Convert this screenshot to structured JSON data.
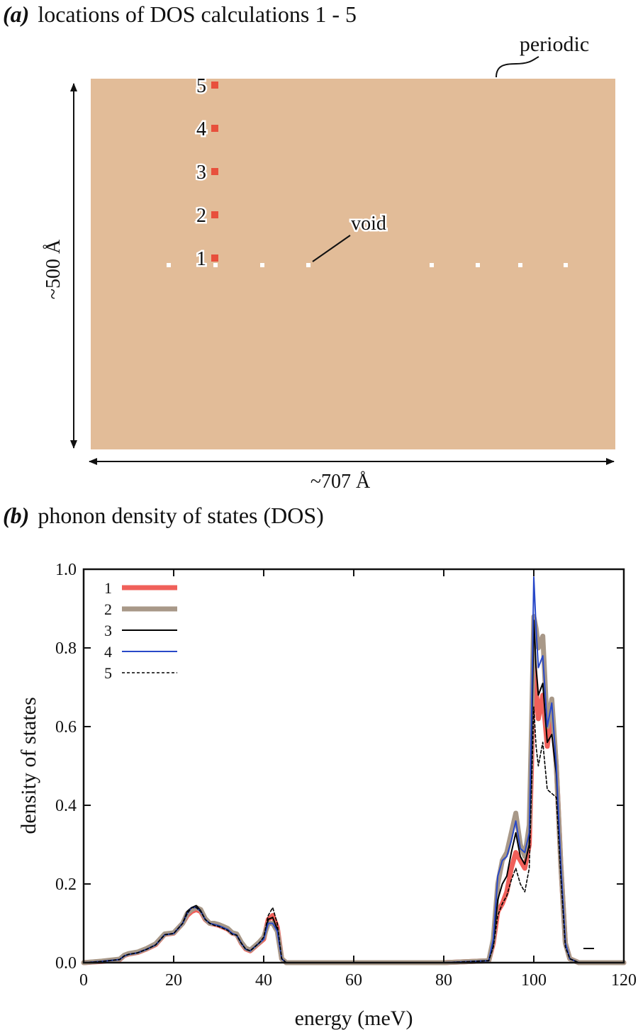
{
  "panel_a": {
    "tag": "(a)",
    "title": "locations of DOS calculations 1 - 5",
    "periodic_label": "periodic",
    "void_label": "void",
    "height_label": "~500 Å",
    "width_label": "~707 Å",
    "colors": {
      "sample": "#e2bc98",
      "marker": "#e8503c",
      "void": "#ffffff"
    },
    "locations": [
      {
        "id": "1",
        "row": 1
      },
      {
        "id": "2",
        "row": 2
      },
      {
        "id": "3",
        "row": 3
      },
      {
        "id": "4",
        "row": 4
      },
      {
        "id": "5",
        "row": 5
      }
    ]
  },
  "panel_b": {
    "tag": "(b)",
    "title": "phonon density of states (DOS)"
  },
  "chart_data": {
    "type": "line",
    "title": "phonon density of states (DOS)",
    "xlabel": "energy (meV)",
    "ylabel": "density of states",
    "xlim": [
      0,
      120
    ],
    "ylim": [
      0,
      1.0
    ],
    "xticks": [
      0,
      20,
      40,
      60,
      80,
      100,
      120
    ],
    "yticks": [
      0.0,
      0.2,
      0.4,
      0.6,
      0.8,
      1.0
    ],
    "xtick_labels": [
      "0",
      "20",
      "40",
      "60",
      "80",
      "100",
      "120"
    ],
    "ytick_labels": [
      "0.0",
      "0.2",
      "0.4",
      "0.6",
      "0.8",
      "1.0"
    ],
    "legend_position": "top-left",
    "x": [
      0,
      4,
      8,
      9,
      10,
      12,
      14,
      16,
      18,
      20,
      22,
      23,
      24,
      25,
      26,
      27,
      28,
      29,
      30,
      31,
      32,
      33,
      34,
      35,
      36,
      37,
      38,
      39,
      40,
      41,
      42,
      43,
      44,
      45,
      50,
      60,
      70,
      80,
      90,
      91,
      92,
      93,
      94,
      95,
      96,
      97,
      98,
      99,
      99.5,
      100,
      100.5,
      101,
      102,
      103,
      104,
      105,
      106,
      107,
      108,
      110,
      115,
      120
    ],
    "series": [
      {
        "name": "1",
        "color": "#f0605a",
        "width": 7,
        "dash": "",
        "values": [
          0,
          0.003,
          0.008,
          0.018,
          0.022,
          0.026,
          0.035,
          0.046,
          0.072,
          0.075,
          0.1,
          0.12,
          0.13,
          0.135,
          0.13,
          0.11,
          0.1,
          0.098,
          0.095,
          0.09,
          0.085,
          0.075,
          0.072,
          0.05,
          0.035,
          0.03,
          0.04,
          0.05,
          0.06,
          0.11,
          0.12,
          0.09,
          0.01,
          0,
          0,
          0,
          0,
          0,
          0.005,
          0.05,
          0.13,
          0.15,
          0.18,
          0.24,
          0.28,
          0.26,
          0.24,
          0.3,
          0.5,
          0.77,
          0.7,
          0.62,
          0.68,
          0.55,
          0.65,
          0.5,
          0.25,
          0.05,
          0.01,
          0,
          0,
          0
        ]
      },
      {
        "name": "2",
        "color": "#a89888",
        "width": 7,
        "dash": "",
        "values": [
          0,
          0.004,
          0.009,
          0.019,
          0.023,
          0.027,
          0.036,
          0.048,
          0.073,
          0.076,
          0.1,
          0.125,
          0.135,
          0.14,
          0.135,
          0.112,
          0.1,
          0.1,
          0.097,
          0.092,
          0.087,
          0.076,
          0.073,
          0.052,
          0.037,
          0.032,
          0.042,
          0.052,
          0.065,
          0.1,
          0.1,
          0.08,
          0.01,
          0,
          0,
          0,
          0,
          0,
          0.005,
          0.06,
          0.2,
          0.26,
          0.28,
          0.33,
          0.38,
          0.3,
          0.27,
          0.35,
          0.6,
          0.88,
          0.85,
          0.8,
          0.83,
          0.6,
          0.67,
          0.5,
          0.25,
          0.05,
          0.01,
          0,
          0,
          0
        ]
      },
      {
        "name": "3",
        "color": "#000000",
        "width": 2,
        "dash": "",
        "values": [
          0,
          0.003,
          0.008,
          0.017,
          0.021,
          0.025,
          0.034,
          0.045,
          0.071,
          0.074,
          0.1,
          0.13,
          0.14,
          0.145,
          0.132,
          0.11,
          0.1,
          0.097,
          0.094,
          0.089,
          0.084,
          0.074,
          0.07,
          0.05,
          0.034,
          0.03,
          0.04,
          0.05,
          0.06,
          0.11,
          0.115,
          0.085,
          0.01,
          0,
          0,
          0,
          0,
          0,
          0.005,
          0.05,
          0.16,
          0.2,
          0.22,
          0.28,
          0.33,
          0.27,
          0.25,
          0.3,
          0.55,
          0.87,
          0.75,
          0.68,
          0.71,
          0.56,
          0.58,
          0.48,
          0.24,
          0.05,
          0.01,
          0,
          0,
          0
        ]
      },
      {
        "name": "4",
        "color": "#2848c8",
        "width": 2,
        "dash": "",
        "values": [
          0,
          0.003,
          0.008,
          0.017,
          0.021,
          0.025,
          0.034,
          0.045,
          0.071,
          0.074,
          0.1,
          0.125,
          0.14,
          0.14,
          0.13,
          0.11,
          0.1,
          0.097,
          0.094,
          0.089,
          0.084,
          0.074,
          0.07,
          0.05,
          0.034,
          0.03,
          0.04,
          0.05,
          0.06,
          0.1,
          0.1,
          0.08,
          0.01,
          0,
          0,
          0,
          0,
          0,
          0.005,
          0.06,
          0.22,
          0.26,
          0.27,
          0.31,
          0.36,
          0.29,
          0.28,
          0.33,
          0.62,
          0.98,
          0.85,
          0.75,
          0.78,
          0.6,
          0.66,
          0.5,
          0.25,
          0.05,
          0.01,
          0,
          0,
          0
        ]
      },
      {
        "name": "5",
        "color": "#000000",
        "width": 1.6,
        "dash": "4 3",
        "values": [
          0,
          0.003,
          0.008,
          0.017,
          0.021,
          0.025,
          0.034,
          0.045,
          0.071,
          0.074,
          0.1,
          0.125,
          0.14,
          0.14,
          0.13,
          0.11,
          0.1,
          0.095,
          0.092,
          0.087,
          0.082,
          0.072,
          0.07,
          0.05,
          0.034,
          0.03,
          0.04,
          0.05,
          0.065,
          0.12,
          0.14,
          0.1,
          0.01,
          0,
          0,
          0,
          0,
          0,
          0.005,
          0.04,
          0.12,
          0.15,
          0.17,
          0.21,
          0.24,
          0.2,
          0.18,
          0.24,
          0.45,
          0.65,
          0.55,
          0.5,
          0.56,
          0.44,
          0.43,
          0.42,
          0.22,
          0.04,
          0.01,
          0,
          0,
          0
        ]
      }
    ]
  }
}
